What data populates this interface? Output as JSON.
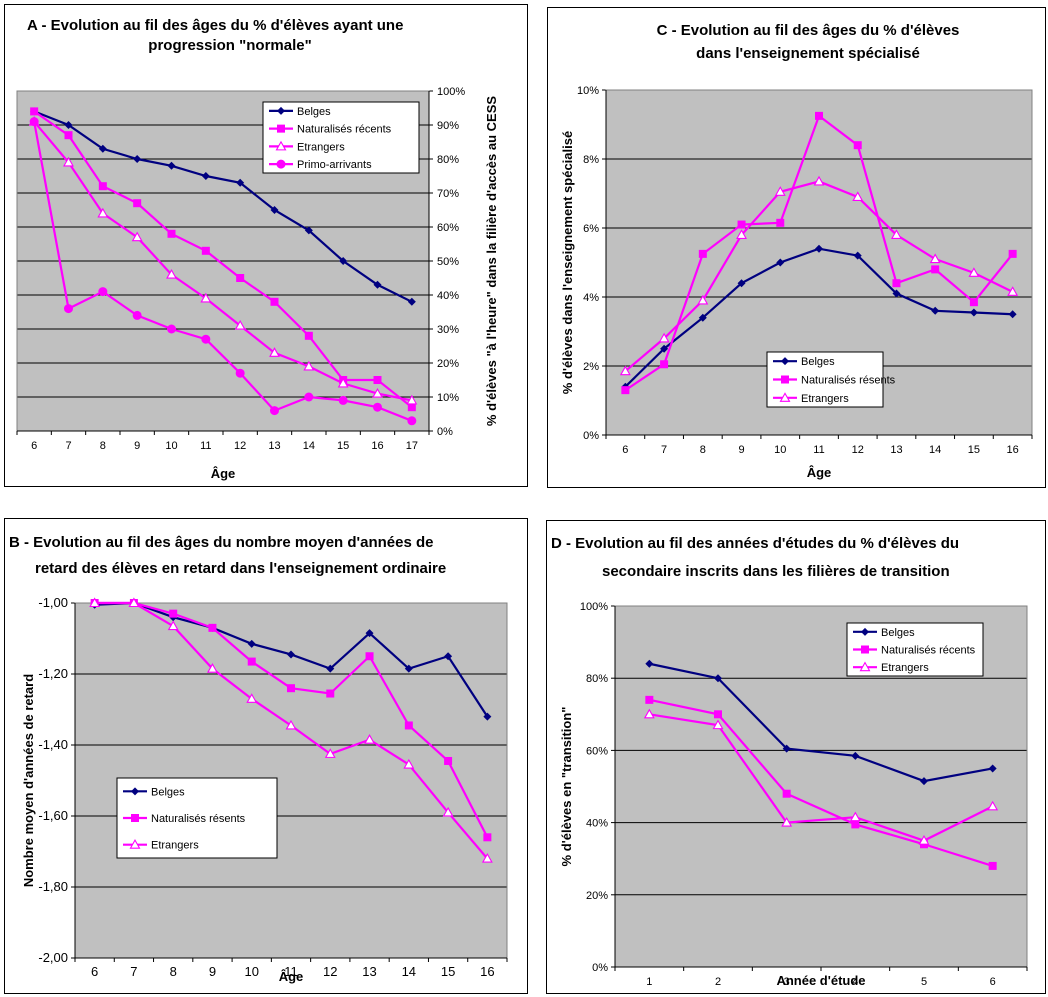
{
  "colors": {
    "belges": "#000080",
    "magenta": "#ff00ff",
    "plot_bg": "#c0c0c0",
    "grid": "#000000"
  },
  "chart_data": [
    {
      "id": "A",
      "type": "line",
      "title": [
        "A - Evolution au fil des âges du % d'élèves ayant une",
        "progression \"normale\""
      ],
      "xlabel": "Âge",
      "ylabel": "% d'élèves \"à l'heure\" dans la filière d'accès au CESS",
      "y_axis_side": "right",
      "x": [
        6,
        7,
        8,
        9,
        10,
        11,
        12,
        13,
        14,
        15,
        16,
        17
      ],
      "x_tick_labels": [
        "6",
        "7",
        "8",
        "9",
        "10",
        "11",
        "12",
        "13",
        "14",
        "15",
        "16",
        "17"
      ],
      "ylim": [
        0,
        100
      ],
      "y_ticks": [
        0,
        10,
        20,
        30,
        40,
        50,
        60,
        70,
        80,
        90,
        100
      ],
      "y_tick_labels": [
        "0%",
        "10%",
        "20%",
        "30%",
        "40%",
        "50%",
        "60%",
        "70%",
        "80%",
        "90%",
        "100%"
      ],
      "legend_position": "top-right",
      "series": [
        {
          "name": "Belges",
          "color": "#000080",
          "marker": "diamond",
          "values": [
            94,
            90,
            83,
            80,
            78,
            75,
            73,
            65,
            59,
            50,
            43,
            38
          ]
        },
        {
          "name": "Naturalisés récents",
          "color": "#ff00ff",
          "marker": "square",
          "values": [
            94,
            87,
            72,
            67,
            58,
            53,
            45,
            38,
            28,
            15,
            15,
            7
          ]
        },
        {
          "name": "Etrangers",
          "color": "#ff00ff",
          "marker": "triangle",
          "values": [
            91,
            79,
            64,
            57,
            46,
            39,
            31,
            23,
            19,
            14,
            11,
            9
          ]
        },
        {
          "name": "Primo-arrivants",
          "color": "#ff00ff",
          "marker": "circle",
          "values": [
            91,
            36,
            41,
            34,
            30,
            27,
            17,
            6,
            10,
            9,
            7,
            3
          ]
        }
      ]
    },
    {
      "id": "C",
      "type": "line",
      "title": [
        "C - Evolution au fil des âges du % d'élèves",
        "dans l'enseignement spécialisé"
      ],
      "xlabel": "Âge",
      "ylabel": "% d'élèves dans l'enseignement spécialisé",
      "y_axis_side": "left",
      "x": [
        6,
        7,
        8,
        9,
        10,
        11,
        12,
        13,
        14,
        15,
        16
      ],
      "x_tick_labels": [
        "6",
        "7",
        "8",
        "9",
        "10",
        "11",
        "12",
        "13",
        "14",
        "15",
        "16"
      ],
      "ylim": [
        0,
        10
      ],
      "y_ticks": [
        0,
        2,
        4,
        6,
        8,
        10
      ],
      "y_tick_labels": [
        "0%",
        "2%",
        "4%",
        "6%",
        "8%",
        "10%"
      ],
      "legend_position": "bottom-center",
      "series": [
        {
          "name": "Belges",
          "color": "#000080",
          "marker": "diamond",
          "values": [
            1.4,
            2.5,
            3.4,
            4.4,
            5.0,
            5.4,
            5.2,
            4.1,
            3.6,
            3.55,
            3.5
          ]
        },
        {
          "name": "Naturalisés résents",
          "color": "#ff00ff",
          "marker": "square",
          "values": [
            1.3,
            2.05,
            5.25,
            6.1,
            6.15,
            9.25,
            8.4,
            4.4,
            4.8,
            3.85,
            5.25
          ]
        },
        {
          "name": "Etrangers",
          "color": "#ff00ff",
          "marker": "triangle",
          "values": [
            1.85,
            2.8,
            3.9,
            5.8,
            7.05,
            7.35,
            6.9,
            5.8,
            5.1,
            4.7,
            4.15
          ]
        }
      ]
    },
    {
      "id": "B",
      "type": "line",
      "title": [
        "B - Evolution au fil des âges du nombre moyen d'années de",
        "retard des élèves en retard dans l'enseignement ordinaire"
      ],
      "xlabel": "Âge",
      "ylabel": "Nombre moyen d'années de retard",
      "y_axis_side": "left",
      "x": [
        6,
        7,
        8,
        9,
        10,
        11,
        12,
        13,
        14,
        15,
        16
      ],
      "x_tick_labels": [
        "6",
        "7",
        "8",
        "9",
        "10",
        "11",
        "12",
        "13",
        "14",
        "15",
        "16"
      ],
      "ylim": [
        -2,
        -1
      ],
      "y_ticks": [
        -2.0,
        -1.8,
        -1.6,
        -1.4,
        -1.2,
        -1.0
      ],
      "y_tick_labels": [
        "-2,00",
        "-1,80",
        "-1,60",
        "-1,40",
        "-1,20",
        "-1,00"
      ],
      "legend_position": "middle-left",
      "series": [
        {
          "name": "Belges",
          "color": "#000080",
          "marker": "diamond",
          "values": [
            -1.005,
            -1.0,
            -1.04,
            -1.07,
            -1.115,
            -1.145,
            -1.185,
            -1.085,
            -1.185,
            -1.15,
            -1.32
          ]
        },
        {
          "name": "Naturalisés résents",
          "color": "#ff00ff",
          "marker": "square",
          "values": [
            -1.0,
            -1.0,
            -1.03,
            -1.07,
            -1.165,
            -1.24,
            -1.255,
            -1.15,
            -1.345,
            -1.445,
            -1.66
          ]
        },
        {
          "name": "Etrangers",
          "color": "#ff00ff",
          "marker": "triangle",
          "values": [
            -1.0,
            -1.0,
            -1.065,
            -1.185,
            -1.27,
            -1.345,
            -1.425,
            -1.385,
            -1.455,
            -1.59,
            -1.72
          ]
        }
      ]
    },
    {
      "id": "D",
      "type": "line",
      "title": [
        "D - Evolution au fil des années d'études du % d'élèves du",
        "secondaire inscrits dans les filières de transition"
      ],
      "xlabel": "Année d'étude",
      "ylabel": "% d'élèves en \"transition\"",
      "y_axis_side": "left",
      "x": [
        1,
        2,
        3,
        4,
        5,
        6
      ],
      "x_tick_labels": [
        "1",
        "2",
        "3",
        "4",
        "5",
        "6"
      ],
      "ylim": [
        0,
        100
      ],
      "y_ticks": [
        0,
        20,
        40,
        60,
        80,
        100
      ],
      "y_tick_labels": [
        "0%",
        "20%",
        "40%",
        "60%",
        "80%",
        "100%"
      ],
      "legend_position": "top-right",
      "series": [
        {
          "name": "Belges",
          "color": "#000080",
          "marker": "diamond",
          "values": [
            84,
            80,
            60.5,
            58.5,
            51.5,
            55
          ]
        },
        {
          "name": "Naturalisés récents",
          "color": "#ff00ff",
          "marker": "square",
          "values": [
            74,
            70,
            48,
            39.5,
            34,
            28
          ]
        },
        {
          "name": "Etrangers",
          "color": "#ff00ff",
          "marker": "triangle",
          "values": [
            70,
            67,
            40,
            41.5,
            35,
            44.5
          ]
        }
      ]
    }
  ]
}
